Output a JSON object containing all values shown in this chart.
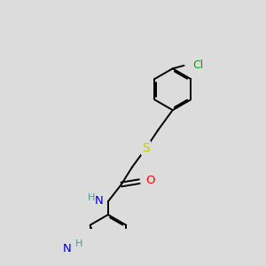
{
  "background_color": "#dcdcdc",
  "atom_colors": {
    "C": "#000000",
    "N": "#0000cc",
    "O": "#ff0000",
    "S": "#cccc00",
    "Cl": "#00aa00",
    "H": "#4a9a9a"
  },
  "bond_color": "#000000",
  "bond_width": 1.4,
  "font_size": 8.5,
  "fig_size": [
    3.0,
    3.0
  ],
  "dpi": 100
}
